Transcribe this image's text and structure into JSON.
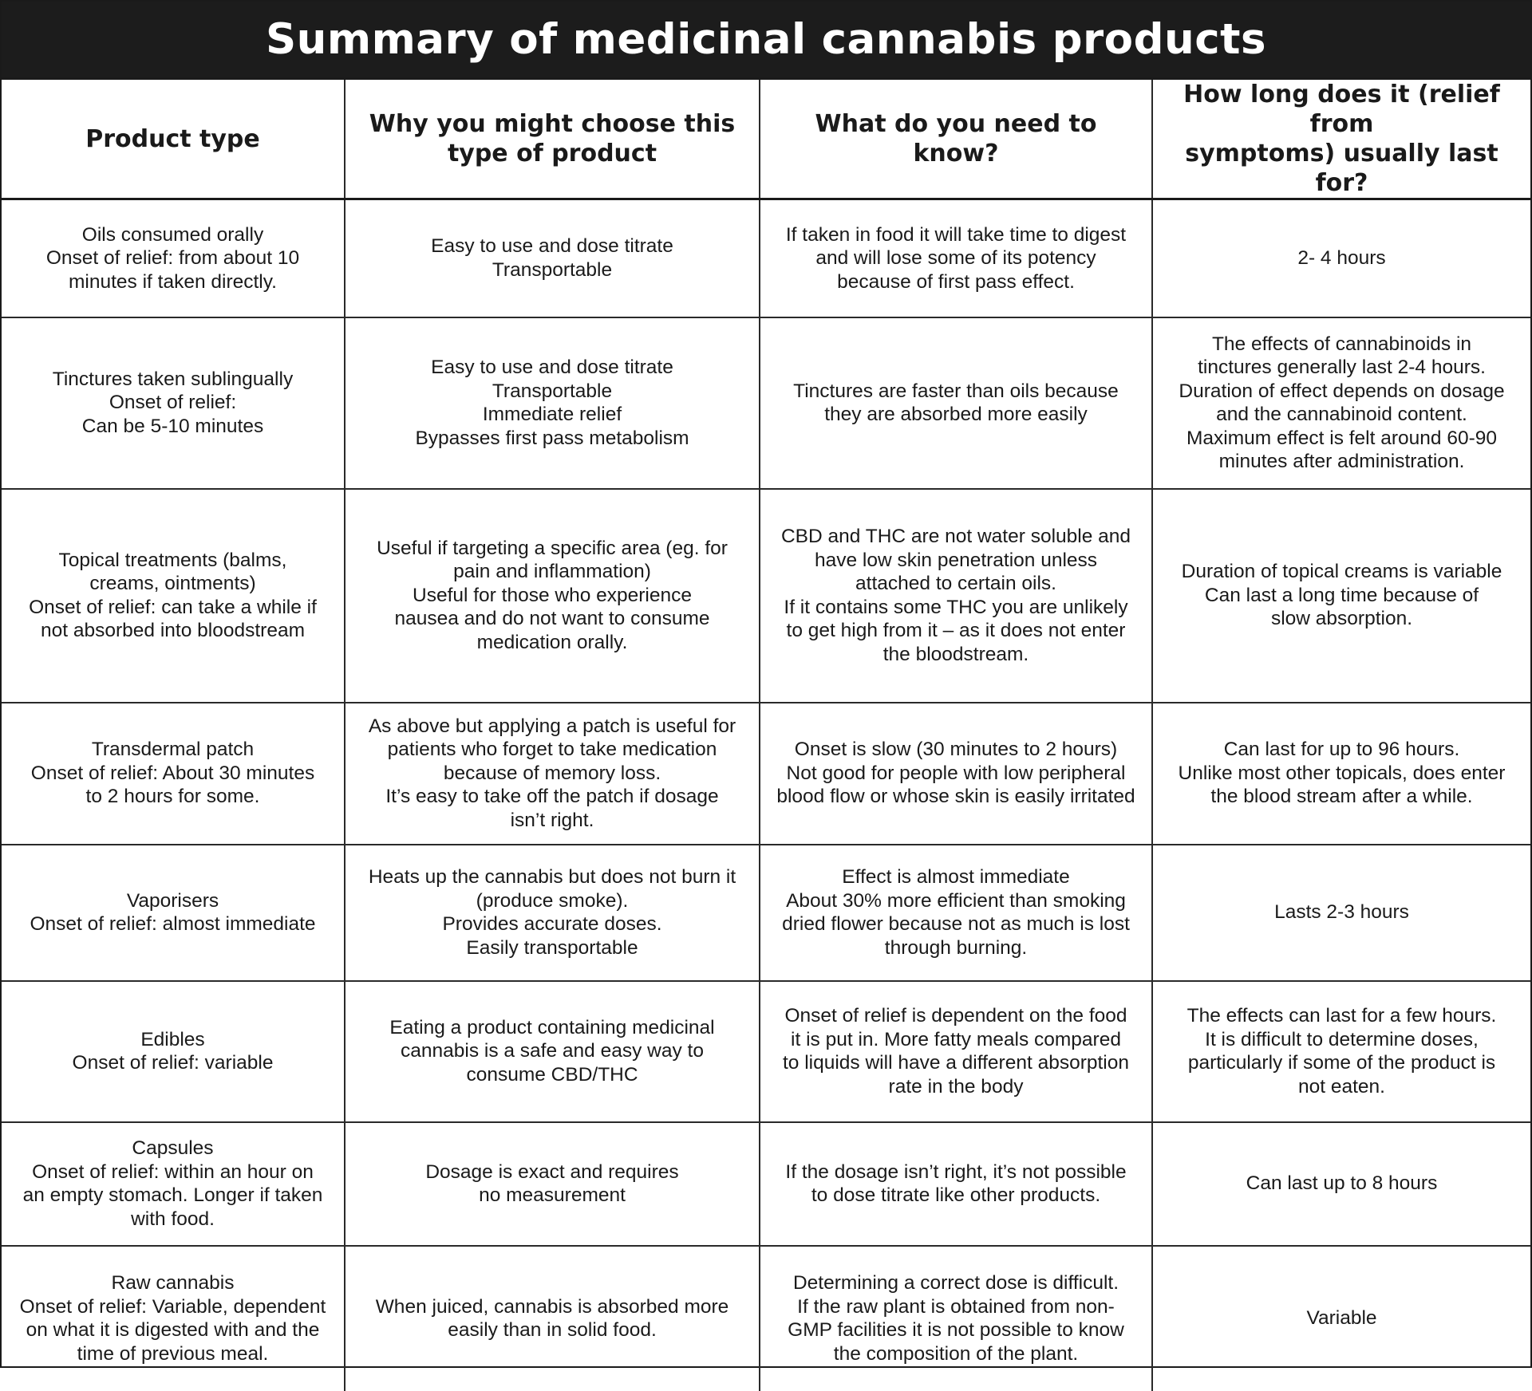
{
  "title": "Summary of medicinal cannabis products",
  "headers": {
    "product_type": "Product type",
    "why": "Why you might choose this\ntype of product",
    "need_to_know": "What do you need to know?",
    "duration": "How long does it (relief from\nsymptoms) usually last for?"
  },
  "rows": [
    {
      "product": "Oils consumed orally\nOnset of relief: from about 10\nminutes if taken directly.",
      "why": "Easy to use and dose titrate\nTransportable",
      "know": "If taken in food it will take time to digest\nand will lose some of its potency\nbecause of first pass effect.",
      "duration": "2- 4 hours"
    },
    {
      "product": "Tinctures taken sublingually\nOnset of relief:\nCan be 5-10 minutes",
      "why": "Easy to use and dose titrate\nTransportable\nImmediate relief\nBypasses first pass metabolism",
      "know": "Tinctures are faster than oils because\nthey are absorbed more easily",
      "duration": "The effects of cannabinoids in\ntinctures generally last 2-4 hours.\nDuration of effect depends on dosage\nand the cannabinoid content.\nMaximum effect is felt around 60-90\nminutes after administration."
    },
    {
      "product": "Topical treatments (balms,\ncreams, ointments)\nOnset of relief: can take a while if\nnot absorbed into bloodstream",
      "why": "Useful if targeting a specific area (eg. for\npain and inflammation)\nUseful for those who experience\nnausea and do not want to consume\nmedication orally.",
      "know": "CBD and THC are not water soluble and\nhave low skin penetration unless\nattached to certain oils.\nIf it contains some THC you are unlikely\nto get high from it – as it does not enter\nthe bloodstream.",
      "duration": "Duration of topical creams is variable\nCan last a long time because of\nslow absorption."
    },
    {
      "product": "Transdermal patch\nOnset of relief: About 30 minutes\nto 2 hours for some.",
      "why": "As above but applying a patch is useful for\npatients who forget to take medication\nbecause of memory loss.\nIt’s easy to take off the patch if dosage\nisn’t right.",
      "know": "Onset is slow (30 minutes to 2 hours)\nNot good for people with low peripheral\nblood flow or whose skin is easily irritated",
      "duration": "Can last for up to 96 hours.\nUnlike most other topicals, does enter\nthe blood stream after a while."
    },
    {
      "product": "Vaporisers\nOnset of relief: almost immediate",
      "why": "Heats up the cannabis but does not burn it\n(produce smoke).\nProvides accurate doses.\nEasily transportable",
      "know": "Effect is almost immediate\nAbout 30% more efficient than smoking\ndried flower because not as much is lost\nthrough burning.",
      "duration": "Lasts 2-3 hours"
    },
    {
      "product": "Edibles\nOnset of relief: variable",
      "why": "Eating a product containing medicinal\ncannabis is a safe and easy way to\nconsume CBD/THC",
      "know": "Onset of relief is dependent on the food\nit is put in. More fatty meals compared\nto liquids will have a different absorption\nrate in the body",
      "duration": "The effects can last for a few hours.\nIt is difficult to determine doses,\nparticularly if some of the product is\nnot eaten."
    },
    {
      "product": "Capsules\nOnset of relief: within an hour on\nan empty stomach. Longer if taken\nwith food.",
      "why": "Dosage is exact and requires\nno measurement",
      "know": "If the dosage isn’t right, it’s not possible\nto dose titrate like other products.",
      "duration": "Can last up to 8 hours"
    },
    {
      "product": "Raw cannabis\nOnset of relief: Variable, dependent\non what it is digested with and the\ntime of previous meal.",
      "why": "When juiced, cannabis is absorbed more\neasily than in solid food.",
      "know": "Determining a correct dose is difficult.\nIf the raw plant is obtained from non-\nGMP facilities it is not possible to know\nthe composition of the plant.",
      "duration": "Variable"
    }
  ]
}
